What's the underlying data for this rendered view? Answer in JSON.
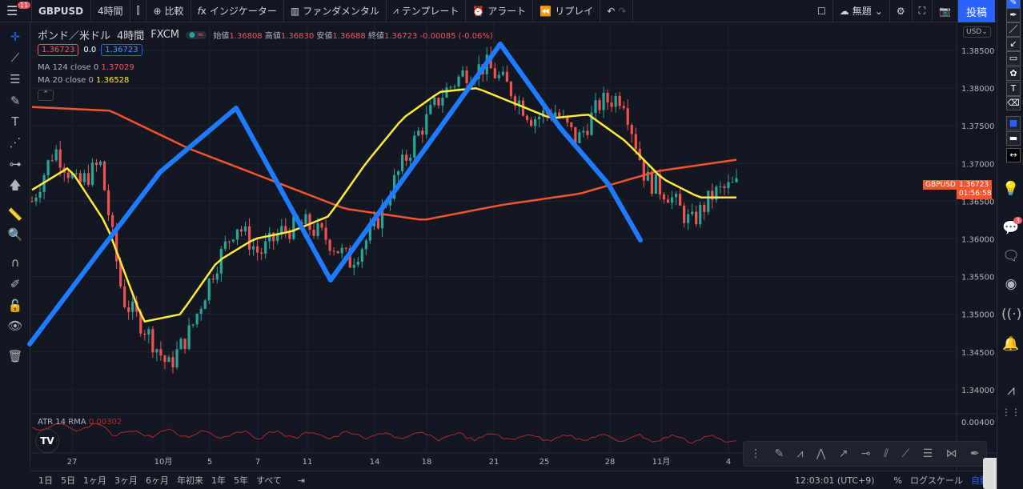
{
  "topbar": {
    "menu_badge": "11",
    "symbol": "GBPUSD",
    "interval": "4時間",
    "compare": "比較",
    "indicators": "インジケーター",
    "fundamentals": "ファンダメンタル",
    "templates": "テンプレート",
    "alert": "アラート",
    "replay": "リプレイ",
    "layout_name": "無題",
    "post": "投稿"
  },
  "legend": {
    "title": "ポンド／米ドル",
    "interval": "4時間",
    "exchange": "FXCM",
    "open_label": "始値",
    "open": "1.36808",
    "high_label": "高値",
    "high": "1.36830",
    "low_label": "安値",
    "low": "1.36688",
    "close_label": "終値",
    "close": "1.36723",
    "change": "-0.00085 (-0.06%)",
    "bid": "1.36723",
    "spread": "0.0",
    "ask": "1.36723",
    "ma1_label": "MA 124 close 0",
    "ma1_value": "1.37029",
    "ma2_label": "MA 20 close 0",
    "ma2_value": "1.36528",
    "atr_label": "ATR 14 RMA",
    "atr_value": "0.00302"
  },
  "price_axis": {
    "currency": "USD",
    "tag_symbol": "GBPUSD",
    "tag_price": "1.36723",
    "tag_countdown": "01:56:58",
    "atr_tick": "0.00400"
  },
  "colors": {
    "up": "#26a69a",
    "down": "#ef5350",
    "ma124": "#f6532f",
    "ma20": "#ffeb3b",
    "drawing": "#1e7bff",
    "accent": "#2962ff"
  },
  "chart_data": {
    "type": "candlestick",
    "symbol": "GBPUSD",
    "interval": "4時間",
    "ylim": [
      1.338,
      1.388
    ],
    "y_ticks": [
      "1.38500",
      "1.38000",
      "1.37500",
      "1.37000",
      "1.36500",
      "1.36000",
      "1.35500",
      "1.35000",
      "1.34500",
      "1.34000"
    ],
    "x_ticks": [
      "27",
      "10月",
      "5",
      "7",
      "11",
      "14",
      "18",
      "21",
      "25",
      "28",
      "11月",
      "4"
    ],
    "close_path": [
      1.365,
      1.372,
      1.367,
      1.37,
      1.352,
      1.348,
      1.343,
      1.348,
      1.356,
      1.362,
      1.358,
      1.361,
      1.362,
      1.36,
      1.357,
      1.361,
      1.368,
      1.374,
      1.379,
      1.382,
      1.383,
      1.38,
      1.376,
      1.377,
      1.373,
      1.378,
      1.379,
      1.368,
      1.366,
      1.362,
      1.366,
      1.3672
    ],
    "ma124": [
      1.3775,
      1.377,
      1.372,
      1.368,
      1.364,
      1.3625,
      1.3645,
      1.366,
      1.369,
      1.3705
    ],
    "ma20": [
      1.3665,
      1.3695,
      1.362,
      1.349,
      1.35,
      1.357,
      1.36,
      1.361,
      1.363,
      1.37,
      1.376,
      1.3795,
      1.38,
      1.378,
      1.376,
      1.3765,
      1.373,
      1.368,
      1.3655,
      1.3655
    ]
  },
  "bottom": {
    "ranges": [
      "1日",
      "5日",
      "1ヶ月",
      "3ヶ月",
      "6ヶ月",
      "年初来",
      "1年",
      "5年",
      "すべて"
    ],
    "time": "12:03:01 (UTC+9)",
    "percent": "%",
    "log": "ログスケール",
    "auto": "自動"
  },
  "right_badge": "3"
}
